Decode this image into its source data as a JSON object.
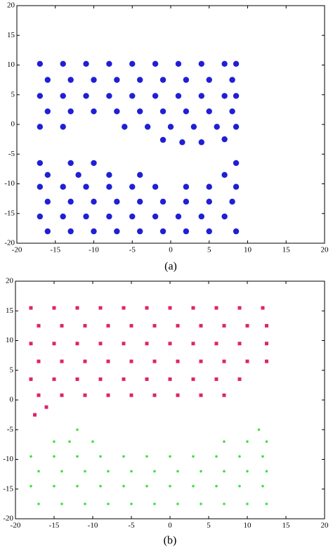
{
  "chart_data": [
    {
      "type": "scatter",
      "caption": "(a)",
      "marker": "circle",
      "xlim": [
        -20,
        20
      ],
      "ylim": [
        -20,
        20
      ],
      "xticks": [
        -20,
        -15,
        -10,
        -5,
        0,
        5,
        10,
        15,
        20
      ],
      "yticks": [
        -20,
        -15,
        -10,
        -5,
        0,
        5,
        10,
        15,
        20
      ],
      "series": [
        {
          "color": "#1f1fd6",
          "x": [
            -17,
            -14,
            -11,
            -8,
            -5,
            -2,
            1,
            4,
            7,
            8.5,
            -16,
            -13,
            -10,
            -7,
            -4,
            -1,
            2,
            5,
            8,
            -17,
            -14,
            -11,
            -8,
            -5,
            -2,
            1,
            4,
            7,
            8.5,
            -16,
            -13,
            -10,
            -7,
            -4,
            -1,
            2,
            5,
            8,
            -17,
            -14,
            -6,
            -3,
            0,
            3,
            6,
            8.5,
            -1,
            1.5,
            4,
            7
          ],
          "y": [
            10.2,
            10.2,
            10.2,
            10.2,
            10.2,
            10.2,
            10.2,
            10.2,
            10.2,
            10.2,
            7.5,
            7.5,
            7.5,
            7.5,
            7.5,
            7.5,
            7.5,
            7.5,
            7.5,
            4.8,
            4.8,
            4.8,
            4.8,
            4.8,
            4.8,
            4.8,
            4.8,
            4.8,
            4.8,
            2.2,
            2.2,
            2.2,
            2.2,
            2.2,
            2.2,
            2.2,
            2.2,
            2.2,
            -0.4,
            -0.4,
            -0.4,
            -0.4,
            -0.4,
            -0.4,
            -0.4,
            -0.4,
            -2.6,
            -3,
            -3,
            -2.5
          ]
        },
        {
          "color": "#1f1fd6",
          "x": [
            -17,
            -13,
            -10,
            8.5,
            -16,
            -12,
            -8,
            -4,
            7,
            -17,
            -14,
            -11,
            -8,
            -5,
            -2,
            2,
            5,
            8.5,
            -16,
            -13,
            -10,
            -7,
            -4,
            -1,
            2,
            5,
            8,
            -17,
            -14,
            -11,
            -8,
            -5,
            -2,
            1,
            4,
            7,
            -16,
            -13,
            -10,
            -7,
            -4,
            -1,
            2,
            5,
            8.5
          ],
          "y": [
            -6.5,
            -6.5,
            -6.5,
            -6.5,
            -8.5,
            -8.5,
            -8.5,
            -8.5,
            -8.5,
            -10.5,
            -10.5,
            -10.5,
            -10.5,
            -10.5,
            -10.5,
            -10.5,
            -10.5,
            -10.5,
            -13,
            -13,
            -13,
            -13,
            -13,
            -13,
            -13,
            -13,
            -13,
            -15.5,
            -15.5,
            -15.5,
            -15.5,
            -15.5,
            -15.5,
            -15.5,
            -15.5,
            -15.5,
            -18,
            -18,
            -18,
            -18,
            -18,
            -18,
            -18,
            -18,
            -18
          ]
        }
      ]
    },
    {
      "type": "scatter",
      "caption": "(b)",
      "marker": "square",
      "xlim": [
        -20,
        20
      ],
      "ylim": [
        -20,
        20
      ],
      "xticks": [
        -20,
        -15,
        -10,
        -5,
        0,
        5,
        10,
        15,
        20
      ],
      "yticks": [
        -20,
        -15,
        -10,
        -5,
        0,
        5,
        10,
        15,
        20
      ],
      "series": [
        {
          "color": "#e0226c",
          "x": [
            -18,
            -15,
            -12,
            -9,
            -6,
            -3,
            0,
            3,
            6,
            9,
            12,
            -17,
            -14,
            -11,
            -8,
            -5,
            -2,
            1,
            4,
            7,
            10,
            12.5,
            -18,
            -15,
            -12,
            -9,
            -6,
            -3,
            0,
            3,
            6,
            9,
            12.5,
            -17,
            -14,
            -11,
            -8,
            -5,
            -2,
            1,
            4,
            7,
            10,
            12.5,
            -18,
            -15,
            -12,
            -9,
            -6,
            -3,
            0,
            3,
            6,
            9,
            -17,
            -14,
            -11,
            -8,
            -5,
            -2,
            1,
            4,
            7,
            -17.5,
            -16
          ],
          "y": [
            15.5,
            15.5,
            15.5,
            15.5,
            15.5,
            15.5,
            15.5,
            15.5,
            15.5,
            15.5,
            15.5,
            12.5,
            12.5,
            12.5,
            12.5,
            12.5,
            12.5,
            12.5,
            12.5,
            12.5,
            12.5,
            12.5,
            9.5,
            9.5,
            9.5,
            9.5,
            9.5,
            9.5,
            9.5,
            9.5,
            9.5,
            9.5,
            9.5,
            6.5,
            6.5,
            6.5,
            6.5,
            6.5,
            6.5,
            6.5,
            6.5,
            6.5,
            6.5,
            6.5,
            3.5,
            3.5,
            3.5,
            3.5,
            3.5,
            3.5,
            3.5,
            3.5,
            3.5,
            3.5,
            0.8,
            0.8,
            0.8,
            0.8,
            0.8,
            0.8,
            0.8,
            0.8,
            0.8,
            -2.5,
            -1.2
          ]
        },
        {
          "color": "#3fe03f",
          "x": [
            -12,
            11.5,
            -15,
            -13,
            -10,
            7,
            10,
            12.5,
            -18,
            -15,
            -12,
            -9,
            -6,
            -3,
            0,
            3,
            6,
            9,
            12,
            -17,
            -14,
            -11,
            -8,
            -5,
            -2,
            1,
            4,
            7,
            10,
            12.5,
            -18,
            -15,
            -12,
            -9,
            -6,
            -3,
            0,
            3,
            6,
            9,
            12,
            -17,
            -14,
            -11,
            -8,
            -5,
            -2,
            1,
            4,
            7,
            10,
            12.5
          ],
          "y": [
            -5,
            -5,
            -7,
            -7,
            -7,
            -7,
            -7,
            -7,
            -9.5,
            -9.5,
            -9.5,
            -9.5,
            -9.5,
            -9.5,
            -9.5,
            -9.5,
            -9.5,
            -9.5,
            -9.5,
            -12,
            -12,
            -12,
            -12,
            -12,
            -12,
            -12,
            -12,
            -12,
            -12,
            -12,
            -14.5,
            -14.5,
            -14.5,
            -14.5,
            -14.5,
            -14.5,
            -14.5,
            -14.5,
            -14.5,
            -14.5,
            -14.5,
            -17.5,
            -17.5,
            -17.5,
            -17.5,
            -17.5,
            -17.5,
            -17.5,
            -17.5,
            -17.5,
            -17.5,
            -17.5
          ]
        }
      ]
    }
  ]
}
